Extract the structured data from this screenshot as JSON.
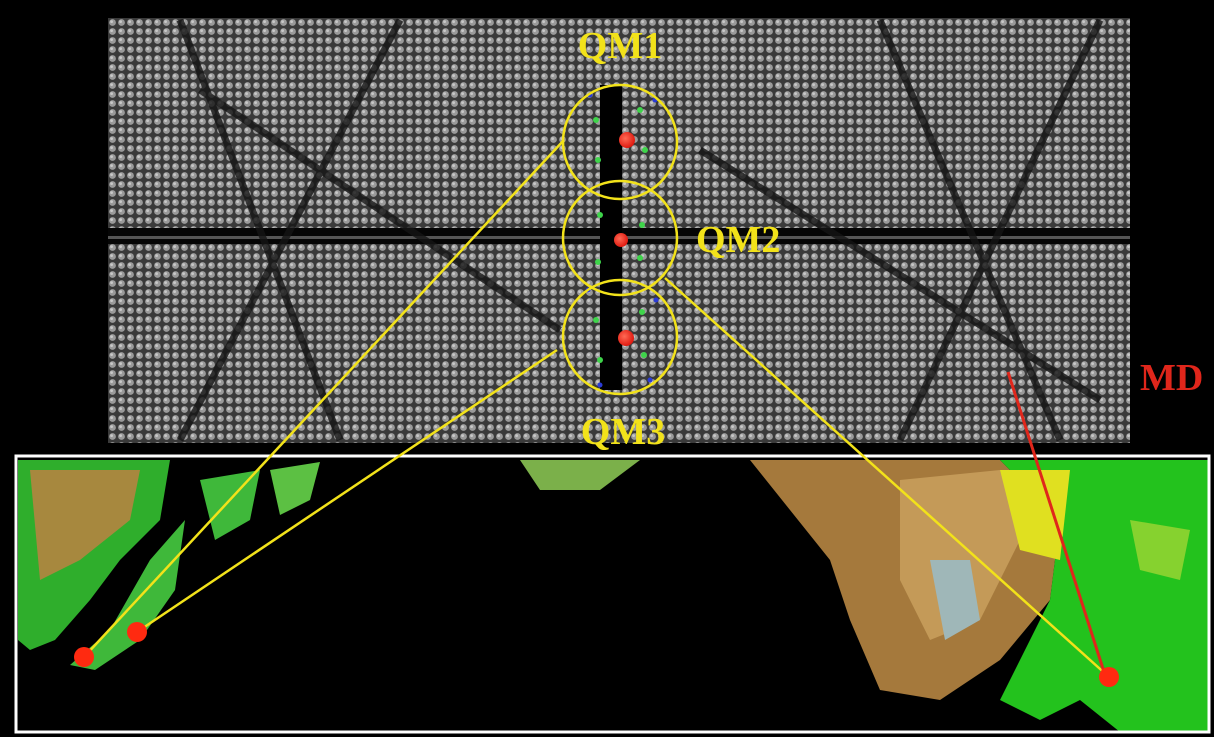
{
  "qm_regions": [
    {
      "label": "QM1"
    },
    {
      "label": "QM2"
    },
    {
      "label": "QM3"
    }
  ],
  "md": {
    "label": "MD"
  }
}
